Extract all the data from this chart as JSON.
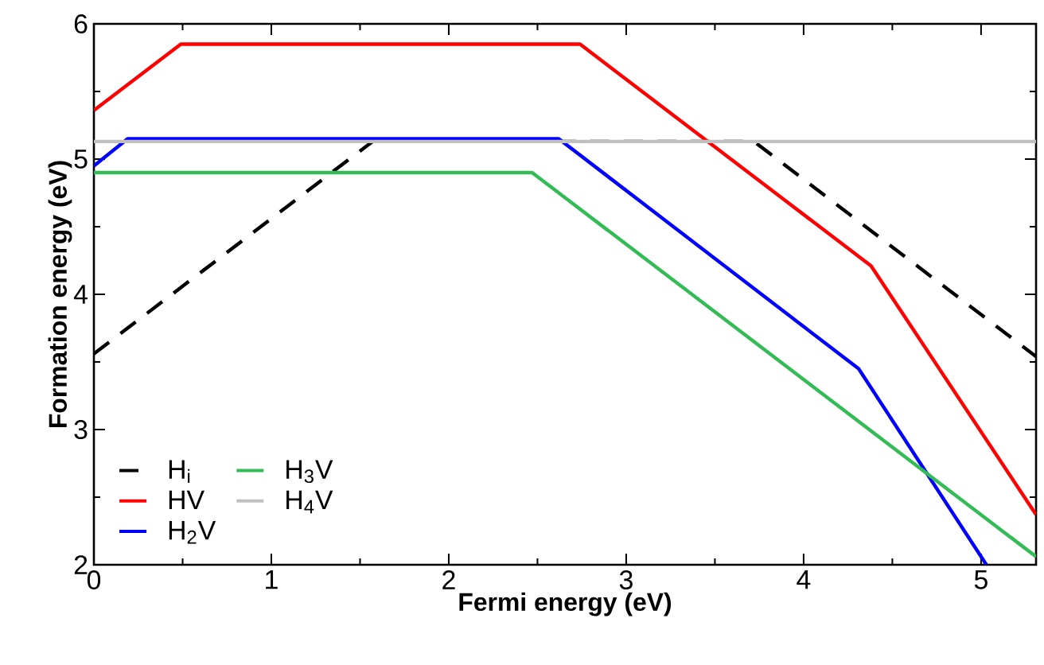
{
  "chart_data": {
    "type": "line",
    "xlabel": "Fermi energy (eV)",
    "ylabel": "Formation energy (eV)",
    "xlim": [
      0,
      5.31
    ],
    "ylim": [
      2,
      6
    ],
    "xticks": [
      0,
      1,
      2,
      3,
      4,
      5
    ],
    "yticks": [
      2,
      3,
      4,
      5,
      6
    ],
    "legend": "bottom left",
    "grid": false,
    "marker": "none",
    "series": [
      {
        "name": "H$_{i}$",
        "color": "#000000",
        "line_style": "dashed",
        "x": [
          0,
          1.57,
          3.72,
          5.31
        ],
        "values": [
          3.56,
          5.13,
          5.13,
          3.54
        ]
      },
      {
        "name": "HV",
        "color": "#ff0000",
        "line_style": "solid",
        "x": [
          0,
          0.49,
          2.74,
          4.38,
          5.31
        ],
        "values": [
          5.36,
          5.85,
          5.85,
          4.21,
          2.37
        ]
      },
      {
        "name": "H$_{2}$V",
        "color": "#0000ff",
        "line_style": "solid",
        "x": [
          0,
          0.19,
          2.62,
          4.31,
          5.03
        ],
        "values": [
          4.95,
          5.15,
          5.15,
          3.45,
          2.0
        ]
      },
      {
        "name": "H$_{3}$V",
        "color": "#33bb55",
        "line_style": "solid",
        "x": [
          0,
          2.47,
          5.31
        ],
        "values": [
          4.9,
          4.9,
          2.06
        ]
      },
      {
        "name": "H$_{4}$V",
        "color": "#c0c0c0",
        "line_style": "solid",
        "x": [
          0,
          5.31
        ],
        "values": [
          5.13,
          5.13
        ]
      }
    ]
  }
}
